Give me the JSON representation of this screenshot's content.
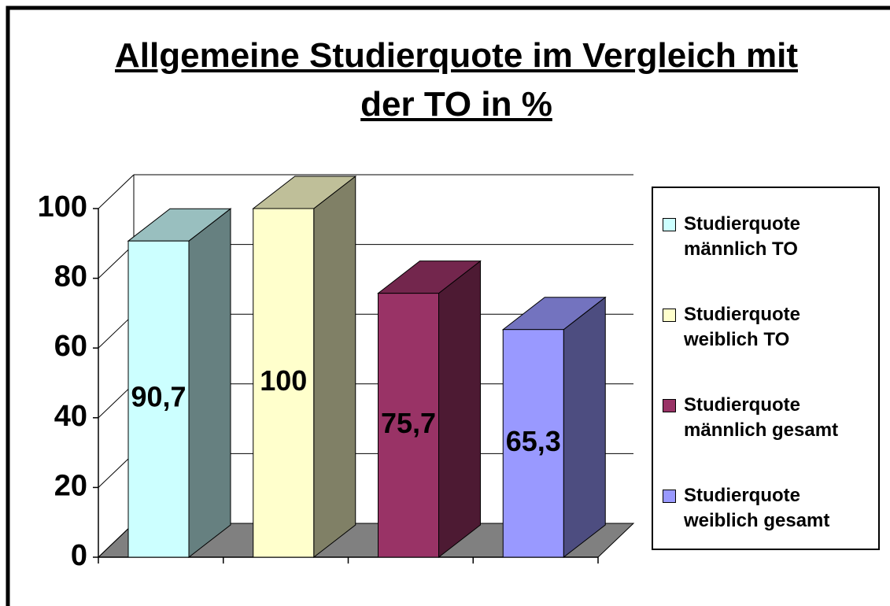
{
  "chart_data": {
    "type": "bar3d",
    "title": "Allgemeine Studierquote im Vergleich mit der TO in %",
    "categories": [
      null
    ],
    "series": [
      {
        "name": "Studierquote männlich TO",
        "color": "#ccffff",
        "values": [
          90.7
        ],
        "value_labels": [
          "90,7"
        ]
      },
      {
        "name": "Studierquote weiblich TO",
        "color": "#ffffcc",
        "values": [
          100
        ],
        "value_labels": [
          "100"
        ]
      },
      {
        "name": "Studierquote männlich gesamt",
        "color": "#993366",
        "values": [
          75.7
        ],
        "value_labels": [
          "75,7"
        ]
      },
      {
        "name": "Studierquote weiblich gesamt",
        "color": "#9999ff",
        "values": [
          65.3
        ],
        "value_labels": [
          "65,3"
        ]
      }
    ],
    "ylim": [
      0,
      100
    ],
    "yticks": [
      0,
      20,
      40,
      60,
      80,
      100
    ],
    "grid": true,
    "legend": "right"
  }
}
